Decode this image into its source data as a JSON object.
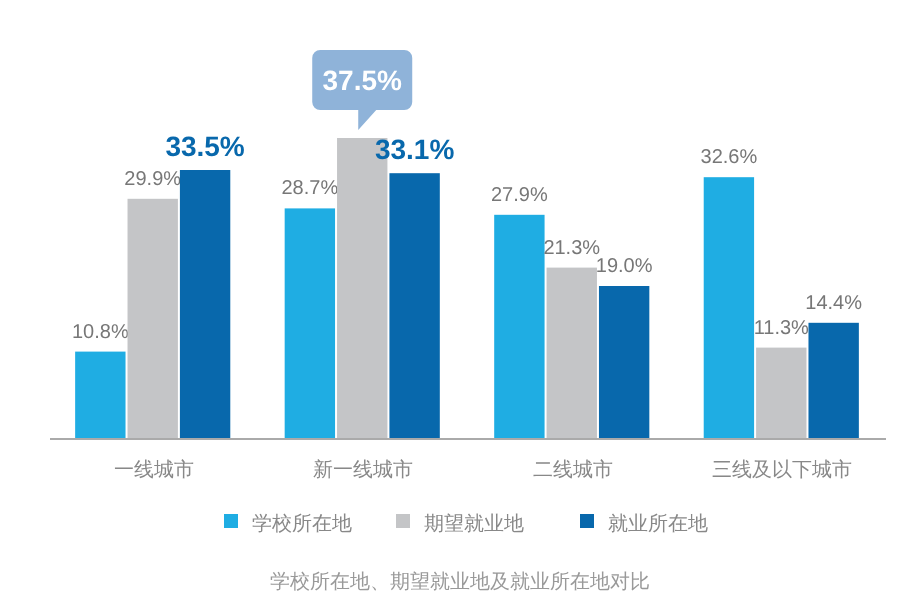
{
  "chart_data": {
    "type": "bar",
    "categories": [
      "一线城市",
      "新一线城市",
      "二线城市",
      "三线及以下城市"
    ],
    "series": [
      {
        "name": "学校所在地",
        "color": "#1fade3",
        "values": [
          10.8,
          28.7,
          27.9,
          32.6
        ],
        "value_labels": [
          "10.8%",
          "28.7%",
          "27.9%",
          "32.6%"
        ]
      },
      {
        "name": "期望就业地",
        "color": "#c4c5c7",
        "values": [
          29.9,
          37.5,
          21.3,
          11.3
        ],
        "value_labels": [
          "29.9%",
          "37.5%",
          "21.3%",
          "11.3%"
        ]
      },
      {
        "name": "就业所在地",
        "color": "#0868ac",
        "values": [
          33.5,
          33.1,
          19.0,
          14.4
        ],
        "value_labels": [
          "33.5%",
          "33.1%",
          "19.0%",
          "14.4%"
        ]
      }
    ],
    "legend": "bottom",
    "annotations": [
      "学校所在地、期望就业地及就业所在地对比"
    ]
  }
}
